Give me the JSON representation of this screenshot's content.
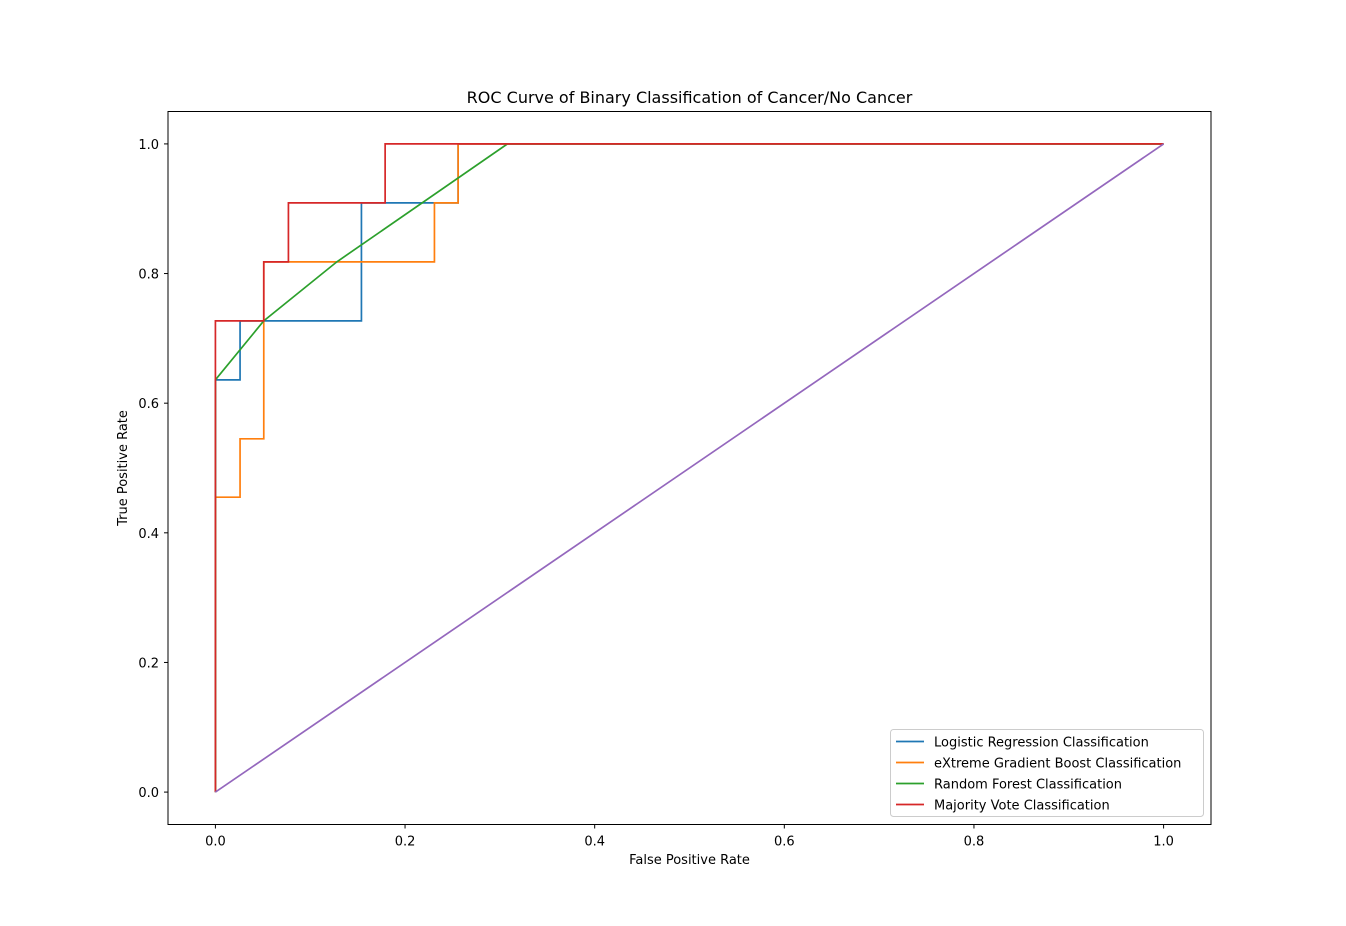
{
  "chart_data": {
    "type": "line",
    "title": "ROC Curve of Binary Classification of Cancer/No Cancer",
    "xlabel": "False Positive Rate",
    "ylabel": "True Positive Rate",
    "xlim": [
      -0.05,
      1.05
    ],
    "ylim": [
      -0.05,
      1.05
    ],
    "xticks": [
      "0.0",
      "0.2",
      "0.4",
      "0.6",
      "0.8",
      "1.0"
    ],
    "yticks": [
      "0.0",
      "0.2",
      "0.4",
      "0.6",
      "0.8",
      "1.0"
    ],
    "grid": false,
    "legend_position": "bottom-right",
    "series": [
      {
        "name": "Logistic Regression Classification",
        "color": "#1f77b4",
        "x": [
          0,
          0,
          0.026,
          0.026,
          0.051,
          0.051,
          0.154,
          0.154,
          0.231,
          0.231,
          0.256,
          0.256,
          1.0
        ],
        "y": [
          0,
          0.636,
          0.636,
          0.727,
          0.727,
          0.727,
          0.727,
          0.909,
          0.909,
          0.909,
          0.909,
          1.0,
          1.0
        ]
      },
      {
        "name": "eXtreme Gradient Boost Classification",
        "color": "#ff7f0e",
        "x": [
          0,
          0,
          0.026,
          0.026,
          0.051,
          0.051,
          0.231,
          0.231,
          0.256,
          0.256,
          1.0
        ],
        "y": [
          0,
          0.455,
          0.455,
          0.545,
          0.545,
          0.818,
          0.818,
          0.909,
          0.909,
          1.0,
          1.0
        ]
      },
      {
        "name": "Random Forest Classification",
        "color": "#2ca02c",
        "x": [
          0,
          0,
          0.051,
          0.128,
          0.308,
          1.0
        ],
        "y": [
          0,
          0.636,
          0.727,
          0.818,
          1.0,
          1.0
        ]
      },
      {
        "name": "Majority Vote Classification",
        "color": "#d62728",
        "x": [
          0,
          0,
          0.051,
          0.051,
          0.077,
          0.077,
          0.179,
          0.179,
          1.0
        ],
        "y": [
          0,
          0.727,
          0.727,
          0.818,
          0.818,
          0.909,
          0.909,
          1.0,
          1.0
        ]
      },
      {
        "color": "#9467bd",
        "x": [
          0,
          1
        ],
        "y": [
          0,
          1
        ]
      }
    ]
  }
}
